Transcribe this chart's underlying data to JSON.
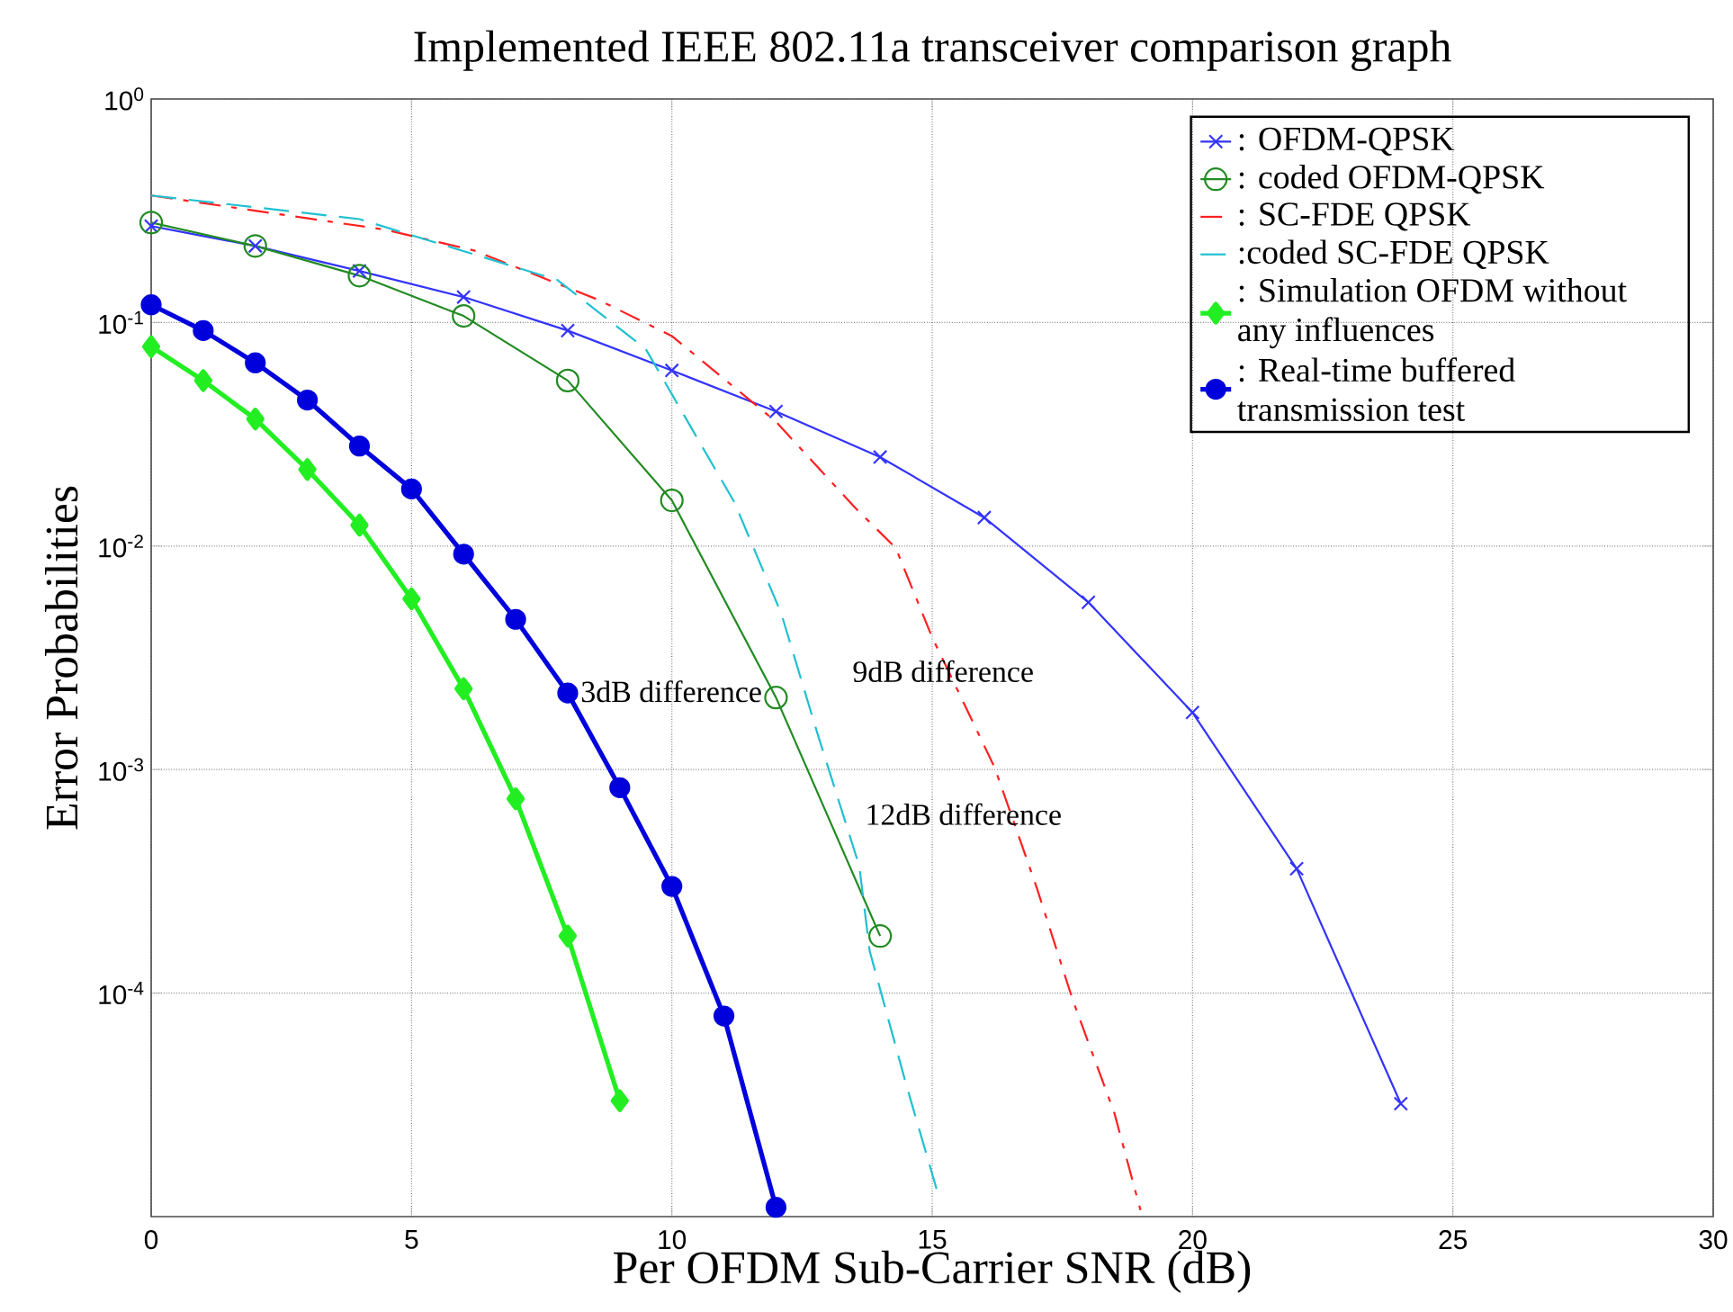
{
  "chart_data": {
    "type": "line",
    "title": "Implemented IEEE 802.11a transceiver comparison graph",
    "xlabel": "Per OFDM Sub-Carrier SNR (dB)",
    "ylabel": "Error Probabilities",
    "log": "y",
    "grid": true,
    "legend": "top right",
    "xlim": [
      0,
      30
    ],
    "xticks": [
      0,
      5,
      10,
      15,
      20,
      25,
      30
    ],
    "ylim": [
      1e-05,
      1
    ],
    "yticks": [
      {
        "value": 1,
        "label": "10$^{0}$"
      },
      {
        "value": 0.1,
        "label": "10$^{-1}$"
      },
      {
        "value": 0.01,
        "label": "10$^{-2}$"
      },
      {
        "value": 0.001,
        "label": "10$^{-3}$"
      },
      {
        "value": 0.0001,
        "label": "10$^{-4}$"
      }
    ],
    "series": [
      {
        "name": ": OFDM-QPSK",
        "color": "#3333ff",
        "marker": "cross",
        "line_style": "solid",
        "x": [
          0,
          2,
          4,
          6,
          8,
          10,
          12,
          14,
          16,
          18,
          20,
          22,
          24
        ],
        "values": [
          0.27,
          0.22,
          0.17,
          0.13,
          0.092,
          0.061,
          0.04,
          0.025,
          0.0134,
          0.0056,
          0.0018,
          0.00036,
          3.2e-05
        ]
      },
      {
        "name": ": coded OFDM-QPSK",
        "color": "#228b22",
        "marker": "circle",
        "line_style": "solid",
        "x": [
          0,
          2,
          4,
          6,
          8,
          10,
          12,
          14
        ],
        "values": [
          0.28,
          0.22,
          0.162,
          0.107,
          0.055,
          0.016,
          0.0021,
          0.00018
        ]
      },
      {
        "name": ": SC-FDE QPSK",
        "color": "#ff2020",
        "marker": "none",
        "line_style": "dashdot",
        "x": [
          0,
          4.5,
          6.2,
          8.6,
          10,
          12,
          13.5,
          14.3,
          15,
          15.4,
          16.2,
          17,
          17.7,
          18.5,
          19
        ],
        "values": [
          0.37,
          0.26,
          0.21,
          0.126,
          0.087,
          0.036,
          0.015,
          0.0098,
          0.0039,
          0.0025,
          0.00102,
          0.0003,
          9.3e-05,
          2.9e-05,
          1.07e-05
        ]
      },
      {
        "name": ":coded SC-FDE QPSK",
        "color": "#20c0d0",
        "marker": "none",
        "line_style": "dashed",
        "x": [
          0,
          4,
          7.8,
          9.5,
          11.2,
          12.1,
          12.8,
          13.6,
          13.8,
          14.5,
          15.1
        ],
        "values": [
          0.37,
          0.29,
          0.155,
          0.076,
          0.0157,
          0.005,
          0.00144,
          0.00037,
          0.000154,
          3.9e-05,
          1.29e-05
        ]
      },
      {
        "name": ": Simulation OFDM without any influences",
        "color": "#22ee22",
        "marker": "diamond",
        "line_style": "solid",
        "x": [
          0,
          1,
          2,
          3,
          4,
          5,
          6,
          7,
          8,
          9
        ],
        "values": [
          0.078,
          0.055,
          0.037,
          0.022,
          0.0124,
          0.0058,
          0.0023,
          0.00074,
          0.00018,
          3.3e-05
        ]
      },
      {
        "name": ": Real-time buffered transmission test",
        "color": "#0000dd",
        "marker": "circle",
        "line_style": "solid",
        "x": [
          0,
          1,
          2,
          3,
          4,
          5,
          6,
          7,
          8,
          9,
          10,
          11,
          12
        ],
        "values": [
          0.12,
          0.092,
          0.066,
          0.045,
          0.028,
          0.018,
          0.0092,
          0.0047,
          0.0022,
          0.00083,
          0.0003,
          7.9e-05,
          1.1e-05
        ]
      }
    ],
    "annotations": [
      "3dB difference",
      "9dB difference",
      "12dB difference"
    ]
  }
}
